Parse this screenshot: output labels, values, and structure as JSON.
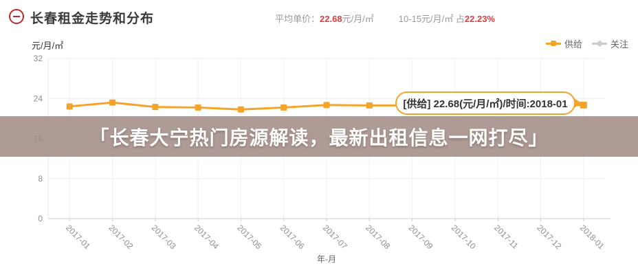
{
  "header": {
    "title": "长春租金走势和分布",
    "avg_label": "平均单价：",
    "avg_value": "22.68",
    "avg_unit": "元/月/㎡",
    "range_label": "10-15元/月/㎡ 占",
    "range_value": "22.23%"
  },
  "legend": {
    "supply_label": "供给",
    "watch_label": "关注",
    "supply_color": "#f5a42a",
    "watch_color": "#cbcbcb"
  },
  "tooltip": {
    "text": "[供给] 22.68(元/月/㎡)/时间:2018-01"
  },
  "banner": {
    "text": "「长春大宁热门房源解读，最新出租信息一网打尽」"
  },
  "chart_data": {
    "type": "line",
    "title": "长春租金走势和分布",
    "unit_label": "元/月/㎡",
    "xlabel": "年-月",
    "ylabel": "元/月/㎡",
    "ylim": [
      0,
      32
    ],
    "yticks": [
      0,
      8,
      16,
      24,
      32
    ],
    "grid": true,
    "legend_position": "top-right",
    "categories": [
      "2017-01",
      "2017-02",
      "2017-03",
      "2017-04",
      "2017-05",
      "2017-06",
      "2017-07",
      "2017-08",
      "2017-09",
      "2017-10",
      "2017-11",
      "2017-12",
      "2018-01"
    ],
    "series": [
      {
        "name": "供给",
        "color": "#f5a42a",
        "marker": "square",
        "values": [
          22.4,
          23.2,
          22.3,
          22.2,
          21.8,
          22.2,
          22.7,
          22.6,
          22.6,
          22.6,
          22.6,
          22.7,
          22.68
        ]
      },
      {
        "name": "关注",
        "color": "#cbcbcb",
        "marker": "diamond",
        "values": []
      }
    ],
    "annotation": {
      "series": "供给",
      "x": "2018-01",
      "value": 22.68,
      "label": "[供给] 22.68(元/月/㎡)/时间:2018-01"
    }
  }
}
